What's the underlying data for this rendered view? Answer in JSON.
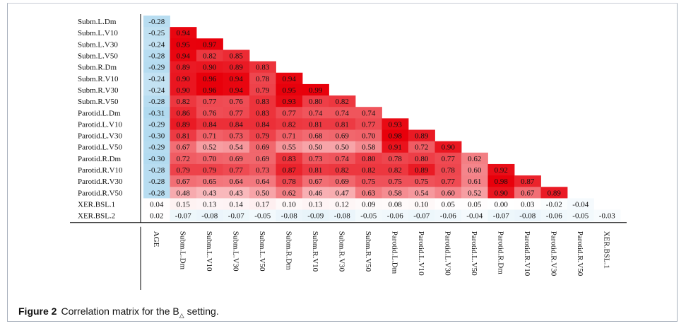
{
  "caption": {
    "label": "Figure 2",
    "text_before": "Correlation matrix for the B",
    "subscript": "△",
    "text_after": " setting."
  },
  "colors": {
    "positive_strong": "#e8000b",
    "positive_light": "#fbe1e1",
    "negative_light": "#d6ebf6",
    "negative_mid": "#9fd2ec",
    "axis_line": "#000000"
  },
  "chart_data": {
    "type": "heatmap",
    "layout": "lower-triangular",
    "row_labels": [
      "Subm.L.Dm",
      "Subm.L.V10",
      "Subm.L.V30",
      "Subm.L.V50",
      "Subm.R.Dm",
      "Subm.R.V10",
      "Subm.R.V30",
      "Subm.R.V50",
      "Parotid.L.Dm",
      "Parotid.L.V10",
      "Parotid.L.V30",
      "Parotid.L.V50",
      "Parotid.R.Dm",
      "Parotid.R.V10",
      "Parotid.R.V30",
      "Parotid.R.V50",
      "XER.BSL.1",
      "XER.BSL.2"
    ],
    "column_labels": [
      "AGE",
      "Subm.L.Dm",
      "Subm.L.V10",
      "Subm.L.V30",
      "Subm.L.V50",
      "Subm.R.Dm",
      "Subm.R.V10",
      "Subm.R.V30",
      "Subm.R.V50",
      "Parotid.L.Dm",
      "Parotid.L.V10",
      "Parotid.L.V30",
      "Parotid.L.V50",
      "Parotid.R.Dm",
      "Parotid.R.V10",
      "Parotid.R.V30",
      "Parotid.R.V50",
      "XER.BSL.1"
    ],
    "values": [
      [
        -0.28
      ],
      [
        -0.25,
        0.94
      ],
      [
        -0.24,
        0.95,
        0.97
      ],
      [
        -0.28,
        0.94,
        0.82,
        0.85
      ],
      [
        -0.29,
        0.89,
        0.9,
        0.89,
        0.83
      ],
      [
        -0.24,
        0.9,
        0.96,
        0.94,
        0.78,
        0.94
      ],
      [
        -0.24,
        0.9,
        0.96,
        0.94,
        0.79,
        0.95,
        0.99
      ],
      [
        -0.28,
        0.82,
        0.77,
        0.76,
        0.83,
        0.93,
        0.8,
        0.82
      ],
      [
        -0.31,
        0.86,
        0.76,
        0.77,
        0.83,
        0.77,
        0.74,
        0.74,
        0.74
      ],
      [
        -0.29,
        0.89,
        0.84,
        0.84,
        0.84,
        0.82,
        0.81,
        0.81,
        0.77,
        0.93
      ],
      [
        -0.3,
        0.81,
        0.71,
        0.73,
        0.79,
        0.71,
        0.68,
        0.69,
        0.7,
        0.98,
        0.89
      ],
      [
        -0.29,
        0.67,
        0.52,
        0.54,
        0.69,
        0.55,
        0.5,
        0.5,
        0.58,
        0.91,
        0.72,
        0.9
      ],
      [
        -0.3,
        0.72,
        0.7,
        0.69,
        0.69,
        0.83,
        0.73,
        0.74,
        0.8,
        0.78,
        0.8,
        0.77,
        0.62
      ],
      [
        -0.28,
        0.79,
        0.79,
        0.77,
        0.73,
        0.87,
        0.81,
        0.82,
        0.82,
        0.82,
        0.89,
        0.78,
        0.6,
        0.92
      ],
      [
        -0.28,
        0.67,
        0.65,
        0.64,
        0.64,
        0.78,
        0.67,
        0.69,
        0.75,
        0.75,
        0.75,
        0.77,
        0.61,
        0.98,
        0.87
      ],
      [
        -0.28,
        0.48,
        0.43,
        0.43,
        0.5,
        0.62,
        0.46,
        0.47,
        0.63,
        0.58,
        0.54,
        0.6,
        0.52,
        0.9,
        0.67,
        0.89
      ],
      [
        0.04,
        0.15,
        0.13,
        0.14,
        0.17,
        0.1,
        0.13,
        0.12,
        0.09,
        0.08,
        0.1,
        0.05,
        0.05,
        0.0,
        0.03,
        -0.02,
        -0.04
      ],
      [
        0.02,
        -0.07,
        -0.08,
        -0.07,
        -0.05,
        -0.08,
        -0.09,
        -0.08,
        -0.05,
        -0.06,
        -0.07,
        -0.06,
        -0.04,
        -0.07,
        -0.08,
        -0.06,
        -0.05,
        -0.03
      ]
    ],
    "labels": [
      [
        "-0.28"
      ],
      [
        "-0.25",
        "0.94"
      ],
      [
        "-0.24",
        "0.95",
        "0.97"
      ],
      [
        "-0.28",
        "0.94",
        "0.82",
        "0.85"
      ],
      [
        "-0.29",
        "0.89",
        "0.90",
        "0.89",
        "0.83"
      ],
      [
        "-0.24",
        "0.90",
        "0.96",
        "0.94",
        "0.78",
        "0.94"
      ],
      [
        "-0.24",
        "0.90",
        "0.96",
        "0.94",
        "0.79",
        "0.95",
        "0.99"
      ],
      [
        "-0.28",
        "0.82",
        "0.77",
        "0.76",
        "0.83",
        "0.93",
        "0.80",
        "0.82"
      ],
      [
        "-0.31",
        "0.86",
        "0.76",
        "0.77",
        "0.83",
        "0.77",
        "0.74",
        "0.74",
        "0.74"
      ],
      [
        "-0.29",
        "0.89",
        "0.84",
        "0.84",
        "0.84",
        "0.82",
        "0.81",
        "0.81",
        "0.77",
        "0.93"
      ],
      [
        "-0.30",
        "0.81",
        "0.71",
        "0.73",
        "0.79",
        "0.71",
        "0.68",
        "0.69",
        "0.70",
        "0.98",
        "0.89"
      ],
      [
        "-0.29",
        "0.67",
        "0.52",
        "0.54",
        "0.69",
        "0.55",
        "0.50",
        "0.50",
        "0.58",
        "0.91",
        "0.72",
        "0.90"
      ],
      [
        "-0.30",
        "0.72",
        "0.70",
        "0.69",
        "0.69",
        "0.83",
        "0.73",
        "0.74",
        "0.80",
        "0.78",
        "0.80",
        "0.77",
        "0.62"
      ],
      [
        "-0.28",
        "0.79",
        "0.79",
        "0.77",
        "0.73",
        "0.87",
        "0.81",
        "0.82",
        "0.82",
        "0.82",
        "0.89",
        "0.78",
        "0.60",
        "0.92"
      ],
      [
        "-0.28",
        "0.67",
        "0.65",
        "0.64",
        "0.64",
        "0.78",
        "0.67",
        "0.69",
        "0.75",
        "0.75",
        "0.75",
        "0.77",
        "0.61",
        "0.98",
        "0.87"
      ],
      [
        "-0.28",
        "0.48",
        "0.43",
        "0.43",
        "0.50",
        "0.62",
        "0.46",
        "0.47",
        "0.63",
        "0.58",
        "0.54",
        "0.60",
        "0.52",
        "0.90",
        "0.67",
        "0.89"
      ],
      [
        "0.04",
        "0.15",
        "0.13",
        "0.14",
        "0.17",
        "0.10",
        "0.13",
        "0.12",
        "0.09",
        "0.08",
        "0.10",
        "0.05",
        "0.05",
        "0.00",
        "0.03",
        "-0.02",
        "-0.04"
      ],
      [
        "0.02",
        "-0.07",
        "-0.08",
        "-0.07",
        "-0.05",
        "-0.08",
        "-0.09",
        "-0.08",
        "-0.05",
        "-0.06",
        "-0.07",
        "-0.06",
        "-0.04",
        "-0.07",
        "-0.08",
        "-0.06",
        "-0.05",
        "-0.03"
      ]
    ],
    "color_scale": "diverging blue (negative) to red (positive)",
    "grid": false,
    "legend": "none"
  }
}
